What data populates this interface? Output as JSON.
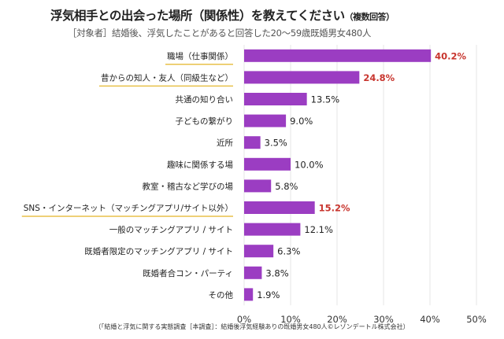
{
  "header": {
    "title": "浮気相手との出会った場所（関係性）を教えてください",
    "title_suffix": "（複数回答）",
    "subtitle": "［対象者］結婚後、浮気したことがあると回答した20～59歳既婚男女480人"
  },
  "source": "（「結婚と浮気に関する実態調査［本調査］：結婚後浮気経験ありの既婚男女480人©レゾンデートル株式会社）",
  "chart_data": {
    "type": "bar",
    "orientation": "horizontal",
    "categories": [
      "職場（仕事関係）",
      "昔からの知人・友人（同級生など）",
      "共通の知り合い",
      "子どもの繋がり",
      "近所",
      "趣味に関係する場",
      "教室・稽古など学びの場",
      "SNS・インターネット（マッチングアプリ/サイト以外）",
      "一般のマッチングアプリ / サイト",
      "既婚者限定のマッチングアプリ / サイト",
      "既婚者合コン・パーティ",
      "その他"
    ],
    "values": [
      40.2,
      24.8,
      13.5,
      9.0,
      3.5,
      10.0,
      5.8,
      15.2,
      12.1,
      6.3,
      3.8,
      1.9
    ],
    "value_labels": [
      "40.2%",
      "24.8%",
      "13.5%",
      "9.0%",
      "3.5%",
      "10.0%",
      "5.8%",
      "15.2%",
      "12.1%",
      "6.3%",
      "3.8%",
      "1.9%"
    ],
    "highlighted": [
      true,
      true,
      false,
      false,
      false,
      false,
      false,
      true,
      false,
      false,
      false,
      false
    ],
    "xlim": [
      0,
      50
    ],
    "x_ticks": [
      "0%",
      "10%",
      "20%",
      "30%",
      "40%",
      "50%"
    ],
    "grid": true,
    "colors": {
      "bar": "#9b3dc2",
      "highlight_text": "#c8352e",
      "normal_text": "#222222",
      "underline": "#e8c14a",
      "grid": "#e6e6e6"
    }
  }
}
